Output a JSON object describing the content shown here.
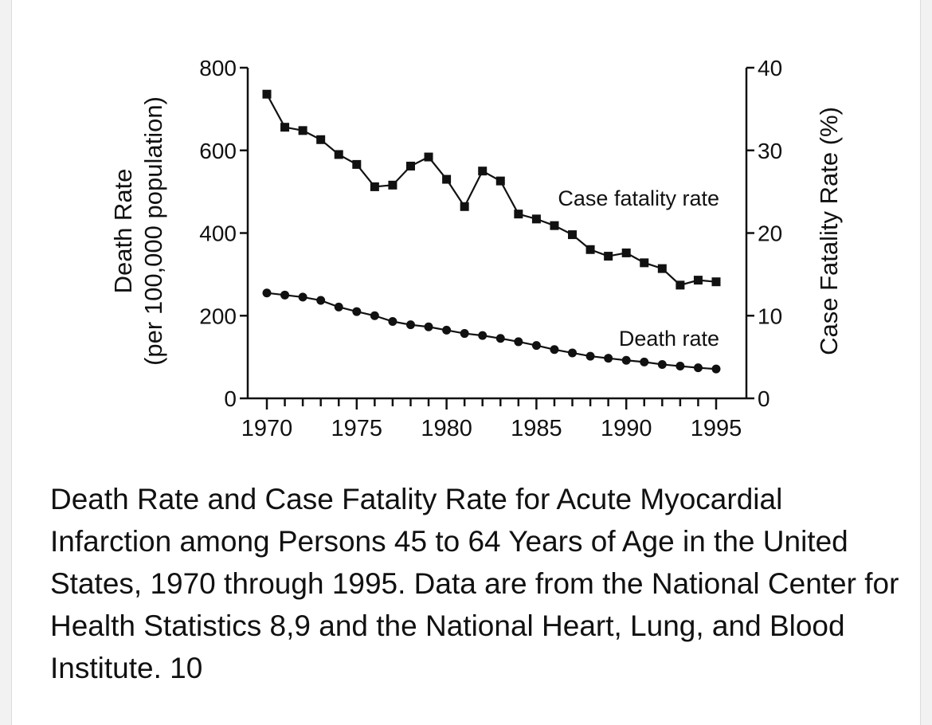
{
  "chart_data": {
    "type": "line",
    "title": "",
    "x_start": 1970,
    "x_end": 1995,
    "x_ticks": [
      1970,
      1975,
      1980,
      1985,
      1990,
      1995
    ],
    "ylabel_left_line1": "Death Rate",
    "ylabel_left_line2": "(per 100,000 population)",
    "ylabel_right": "Case Fatality Rate (%)",
    "ylim_left": [
      0,
      800
    ],
    "yticks_left": [
      0,
      200,
      400,
      600,
      800
    ],
    "ylim_right": [
      0,
      40
    ],
    "yticks_right": [
      0,
      10,
      20,
      30,
      40
    ],
    "grid": false,
    "series": [
      {
        "name": "Case fatality rate",
        "axis": "right",
        "marker": "square",
        "x": [
          1970,
          1971,
          1972,
          1973,
          1974,
          1975,
          1976,
          1977,
          1978,
          1979,
          1980,
          1981,
          1982,
          1983,
          1984,
          1985,
          1986,
          1987,
          1988,
          1989,
          1990,
          1991,
          1992,
          1993,
          1994,
          1995
        ],
        "values": [
          36.8,
          32.8,
          32.4,
          31.3,
          29.5,
          28.3,
          25.6,
          25.8,
          28.1,
          29.2,
          26.5,
          23.2,
          27.5,
          26.3,
          22.3,
          21.7,
          20.9,
          19.8,
          18.0,
          17.2,
          17.6,
          16.4,
          15.7,
          13.7,
          14.3,
          14.1
        ]
      },
      {
        "name": "Death rate",
        "axis": "left",
        "marker": "circle",
        "x": [
          1970,
          1971,
          1972,
          1973,
          1974,
          1975,
          1976,
          1977,
          1978,
          1979,
          1980,
          1981,
          1982,
          1983,
          1984,
          1985,
          1986,
          1987,
          1988,
          1989,
          1990,
          1991,
          1992,
          1993,
          1994,
          1995
        ],
        "values": [
          255,
          250,
          245,
          237,
          221,
          210,
          200,
          186,
          178,
          173,
          165,
          157,
          152,
          145,
          137,
          128,
          118,
          110,
          102,
          97,
          92,
          88,
          82,
          78,
          74,
          71
        ]
      }
    ]
  },
  "caption": "Death Rate and Case Fatality Rate for Acute Myocardial Infarction among Persons 45 to 64 Years of Age in the United States, 1970 through 1995. Data are from the National Center for Health Statistics 8,9 and the National Heart, Lung, and Blood Institute. 10"
}
